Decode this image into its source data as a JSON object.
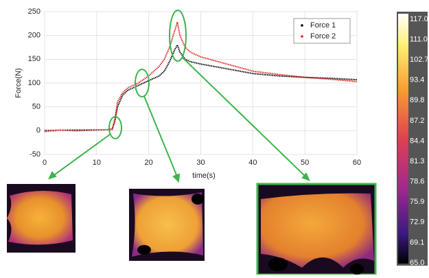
{
  "chart_data": {
    "type": "line",
    "xlabel": "time(s)",
    "ylabel": "Force(N)",
    "x": [
      0,
      3,
      6,
      9,
      12,
      13,
      13.5,
      14,
      15,
      16,
      18,
      20,
      22,
      23,
      24,
      25,
      25.5,
      26,
      27,
      28,
      30,
      35,
      40,
      45,
      50,
      55,
      60
    ],
    "series": [
      {
        "name": "Force 1",
        "color": "#000000",
        "values": [
          0,
          1,
          0,
          1,
          2,
          3,
          20,
          50,
          75,
          85,
          95,
          105,
          115,
          125,
          145,
          170,
          180,
          165,
          150,
          145,
          140,
          130,
          120,
          115,
          112,
          110,
          107
        ]
      },
      {
        "name": "Force 2",
        "color": "#e0201b",
        "values": [
          -2,
          1,
          2,
          2,
          2,
          4,
          25,
          60,
          80,
          90,
          100,
          115,
          135,
          150,
          175,
          210,
          228,
          200,
          175,
          165,
          155,
          140,
          125,
          118,
          112,
          108,
          103
        ]
      }
    ],
    "xlim": [
      0,
      60
    ],
    "xticks": [
      0,
      10,
      20,
      30,
      40,
      50,
      60
    ],
    "ylim": [
      -50,
      250
    ],
    "yticks": [
      -50,
      0,
      50,
      100,
      150,
      200,
      250
    ],
    "grid": true,
    "legend": "upper right"
  },
  "colorbar": {
    "labels": [
      "117.0",
      "111.0",
      "102.7",
      "93.4",
      "89.8",
      "87.2",
      "84.4",
      "81.3",
      "78.6",
      "75.9",
      "72.9",
      "69.1",
      "65.0"
    ]
  }
}
